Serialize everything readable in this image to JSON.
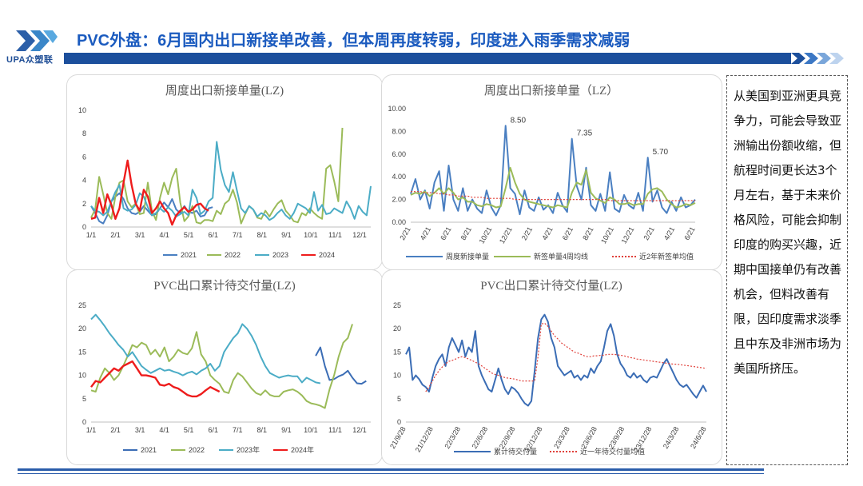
{
  "header": {
    "logo_text": "UPA众塑联",
    "title": "PVC外盘：6月国内出口新接单改善，但本周再度转弱，印度进入雨季需求减弱",
    "brand_color": "#1c4f9c"
  },
  "note": {
    "text": "从美国到亚洲更具竞争力，可能会导致亚洲输出份额收缩，但航程时间更长达3个月左右，基于未来价格风险，可能会抑制印度的购买兴趣，近期中国接单仍有改善机会，但料改善有限，因印度需求淡季且中东及非洲市场为美国所挤压。"
  },
  "chart_data": [
    {
      "id": "c1",
      "type": "line",
      "title": "周度出口新接单量(LZ)",
      "x_ticks": [
        "1/1",
        "2/1",
        "3/1",
        "4/1",
        "5/1",
        "6/1",
        "7/1",
        "8/1",
        "9/1",
        "10/1",
        "11/1",
        "12/1"
      ],
      "y_ticks": [
        "0",
        "2",
        "4",
        "6",
        "8",
        "10"
      ],
      "ylim": [
        0,
        10
      ],
      "legend_position": "bottom",
      "series": [
        {
          "name": "2021",
          "color": "#4a7fc1",
          "values": [
            1.8,
            1.2,
            0.5,
            0.3,
            1.0,
            2.2,
            2.6,
            2.9,
            2.4,
            1.6,
            1.2,
            1.1,
            1.3,
            1.8,
            1.4,
            1.0,
            1.1,
            1.6,
            2.1,
            1.7,
            2.4,
            1.5,
            1.2,
            1.8,
            1.3,
            1.2,
            1.4,
            0.9,
            1.0,
            1.6,
            1.7
          ]
        },
        {
          "name": "2022",
          "color": "#9bbb59",
          "values": [
            0.8,
            1.5,
            4.3,
            2.8,
            1.2,
            0.7,
            2.6,
            3.8,
            4.0,
            2.2,
            1.7,
            2.0,
            1.1,
            1.2,
            3.8,
            1.4,
            0.6,
            2.5,
            3.8,
            2.8,
            4.2,
            5.0,
            2.1,
            0.5,
            0.9,
            1.8,
            0.4,
            0.3,
            0.6,
            0.6,
            0.5,
            1.4,
            1.1,
            2.0,
            2.3,
            3.2,
            2.1,
            0.3,
            1.1,
            1.8,
            1.5,
            0.8,
            0.7,
            1.4,
            0.9,
            1.5,
            2.0,
            2.3,
            1.4,
            1.0,
            0.5,
            0.4,
            1.2,
            1.0,
            1.6,
            1.2,
            0.9,
            0.7,
            5.0,
            5.3,
            3.9,
            2.2,
            8.5
          ]
        },
        {
          "name": "2023",
          "color": "#4bacc6",
          "values": [
            1.8,
            1.4,
            1.3,
            1.0,
            1.3,
            2.2,
            3.0,
            3.6,
            1.6,
            1.4,
            1.5,
            1.9,
            2.9,
            2.6,
            1.7,
            1.0,
            1.2,
            1.6,
            1.3,
            1.7,
            1.4,
            0.9,
            1.1,
            1.3,
            1.0,
            3.2,
            2.5,
            1.1,
            1.4,
            2.2,
            2.5,
            7.3,
            4.9,
            3.6,
            3.0,
            4.7,
            3.1,
            1.6,
            1.2,
            1.8,
            1.5,
            0.9,
            1.2,
            1.0,
            0.6,
            0.8,
            1.2,
            1.5,
            1.0,
            0.7,
            1.2,
            2.0,
            1.8,
            1.6,
            1.2,
            3.0,
            1.4,
            1.9,
            1.1,
            1.2,
            1.6,
            1.4,
            1.2,
            2.2,
            1.6,
            0.7,
            1.8,
            1.3,
            1.0,
            3.5
          ]
        },
        {
          "name": "2024",
          "color": "#ee1c1c",
          "values": [
            0.7,
            0.8,
            2.5,
            1.2,
            2.8,
            1.9,
            0.7,
            1.6,
            3.8,
            5.7,
            3.6,
            2.0,
            1.4,
            3.2,
            2.6,
            1.2,
            1.6,
            2.2,
            1.6,
            1.2,
            0.2,
            1.0,
            1.4,
            1.7,
            1.3,
            1.5,
            1.9,
            2.0,
            1.6,
            1.4
          ]
        }
      ]
    },
    {
      "id": "c2",
      "type": "line",
      "title": "周度出口新接单量（LZ）",
      "x_ticks": [
        "2/21",
        "4/21",
        "6/21",
        "8/21",
        "10/21",
        "12/21",
        "2/21",
        "4/21",
        "6/21",
        "8/21",
        "10/21",
        "12/21",
        "2/21",
        "4/21",
        "6/21"
      ],
      "y_ticks": [
        "0.00",
        "2.00",
        "4.00",
        "6.00",
        "8.00",
        "10.00"
      ],
      "ylim": [
        0,
        10
      ],
      "legend_position": "bottom",
      "data_labels": [
        {
          "text": "8.50",
          "index": 20,
          "value": 8.5
        },
        {
          "text": "7.35",
          "index": 34,
          "value": 7.35
        },
        {
          "text": "5.70",
          "index": 50,
          "value": 5.7
        }
      ],
      "series": [
        {
          "name": "周度新接单量",
          "color": "#4a7fc1",
          "values": [
            2.5,
            3.8,
            2.0,
            2.8,
            1.2,
            3.5,
            4.5,
            1.0,
            5.0,
            2.0,
            1.0,
            3.0,
            1.0,
            2.0,
            1.2,
            0.8,
            2.8,
            1.3,
            0.6,
            1.5,
            8.5,
            3.0,
            2.5,
            0.7,
            2.8,
            1.3,
            1.0,
            2.2,
            1.1,
            1.5,
            0.8,
            2.6,
            1.5,
            0.9,
            7.35,
            3.2,
            2.0,
            4.8,
            1.5,
            1.0,
            2.5,
            1.0,
            4.4,
            1.2,
            0.9,
            2.4,
            1.5,
            1.2,
            2.6,
            1.0,
            5.7,
            1.8,
            2.8,
            1.3,
            0.8,
            1.8,
            1.0,
            2.2,
            1.3,
            1.5,
            2.0
          ]
        },
        {
          "name": "新签单量4周均线",
          "color": "#9bbb59",
          "values": [
            2.4,
            2.6,
            2.5,
            2.7,
            2.3,
            2.6,
            3.0,
            2.5,
            3.0,
            2.6,
            2.0,
            2.2,
            1.8,
            1.8,
            1.5,
            1.4,
            1.6,
            1.5,
            1.3,
            1.4,
            3.0,
            4.8,
            3.5,
            2.5,
            2.0,
            1.8,
            1.7,
            1.6,
            1.5,
            1.4,
            1.3,
            1.5,
            1.4,
            1.3,
            2.6,
            3.5,
            3.3,
            4.6,
            2.6,
            2.1,
            1.9,
            1.7,
            2.2,
            2.0,
            1.6,
            1.6,
            1.7,
            1.5,
            1.6,
            1.6,
            2.5,
            2.9,
            3.0,
            2.7,
            2.0,
            1.6,
            1.3,
            1.4,
            1.6,
            1.5,
            1.7
          ]
        },
        {
          "name": "近2年新签单均值",
          "color": "#e0403a",
          "dashed": true,
          "values": [
            2.7,
            2.7,
            2.7,
            2.6,
            2.6,
            2.6,
            2.5,
            2.5,
            2.4,
            2.4,
            2.3,
            2.3,
            2.3,
            2.2,
            2.2,
            2.2,
            2.1,
            2.1,
            2.1,
            2.1,
            2.1,
            2.1,
            2.0,
            2.0,
            2.0,
            2.0,
            2.0,
            2.0,
            2.0,
            2.0,
            2.0,
            2.0,
            2.0,
            2.0,
            2.0,
            2.0,
            2.0,
            2.0,
            2.0,
            2.0,
            2.0,
            2.0,
            1.9,
            1.9,
            1.9,
            1.9,
            1.9,
            1.9,
            1.9,
            1.9,
            1.9,
            1.9,
            1.9,
            1.9,
            1.9,
            1.9,
            1.9,
            1.9,
            1.9,
            1.9,
            1.9
          ]
        }
      ]
    },
    {
      "id": "c3",
      "type": "line",
      "title": "PVC出口累计待交付量(LZ)",
      "x_ticks": [
        "1/1",
        "2/1",
        "3/1",
        "4/1",
        "5/1",
        "6/1",
        "7/1",
        "8/1",
        "9/1",
        "10/1",
        "11/1",
        "12/1"
      ],
      "y_ticks": [
        "0",
        "5",
        "10",
        "15",
        "20",
        "25"
      ],
      "ylim": [
        0,
        25
      ],
      "legend_position": "bottom",
      "series": [
        {
          "name": "2021",
          "color": "#3b6db5",
          "offset": 49,
          "values": [
            14.2,
            16.0,
            12.0,
            9.0,
            9.2,
            9.8,
            10.2,
            11.0,
            9.5,
            8.3,
            8.2,
            8.8
          ]
        },
        {
          "name": "2022",
          "color": "#9bbb59",
          "values": [
            6.8,
            6.5,
            9.5,
            11.5,
            10.5,
            9.0,
            10.0,
            12.0,
            14.2,
            16.5,
            16.0,
            17.0,
            16.5,
            14.5,
            15.5,
            14.0,
            16.0,
            13.0,
            14.0,
            15.5,
            14.8,
            14.5,
            15.8,
            19.3,
            14.5,
            13.0,
            10.0,
            9.0,
            8.2,
            6.5,
            6.2,
            9.0,
            10.5,
            9.8,
            8.5,
            7.2,
            6.2,
            5.8,
            6.8,
            5.8,
            5.5,
            5.5,
            6.5,
            6.8,
            7.0,
            6.5,
            5.7,
            4.5,
            4.0,
            3.8,
            3.5,
            3.0,
            7.0,
            10.0,
            14.0,
            17.0,
            18.0,
            21.0
          ]
        },
        {
          "name": "2023年",
          "color": "#4bacc6",
          "values": [
            22.0,
            23.0,
            21.8,
            20.5,
            19.0,
            17.8,
            16.5,
            15.5,
            14.0,
            15.0,
            13.5,
            12.0,
            11.2,
            10.5,
            11.0,
            11.5,
            11.0,
            11.2,
            10.8,
            10.5,
            10.0,
            10.5,
            10.8,
            10.2,
            11.0,
            11.5,
            12.5,
            11.0,
            12.0,
            15.0,
            16.5,
            18.0,
            19.0,
            21.0,
            20.0,
            18.5,
            16.5,
            14.0,
            12.0,
            10.5,
            10.0,
            9.5,
            9.8,
            10.0,
            9.8,
            9.8,
            8.5,
            9.5,
            9.0,
            8.5,
            8.3
          ]
        },
        {
          "name": "2024年",
          "color": "#ee1c1c",
          "values": [
            7.5,
            8.8,
            8.5,
            9.5,
            10.5,
            11.5,
            11.0,
            12.0,
            12.5,
            13.0,
            11.5,
            10.0,
            10.0,
            9.8,
            9.5,
            8.0,
            7.8,
            8.2,
            7.5,
            7.2,
            6.5,
            5.8,
            5.5,
            5.5,
            6.0,
            6.8,
            7.5,
            7.0,
            6.5
          ]
        }
      ]
    },
    {
      "id": "c4",
      "type": "line",
      "title": "PVC出口累计待交付量(LZ)",
      "x_ticks": [
        "21/9/28",
        "21/12/28",
        "22/3/28",
        "22/6/28",
        "22/9/28",
        "22/12/28",
        "23/3/28",
        "23/6/28",
        "23/9/28",
        "23/12/28",
        "24/3/28",
        "24/6/28"
      ],
      "y_ticks": [
        "0",
        "5",
        "10",
        "15",
        "20",
        "25"
      ],
      "ylim": [
        0,
        25
      ],
      "legend_position": "bottom",
      "series": [
        {
          "name": "累计待交付量",
          "color": "#3b6db5",
          "values": [
            14.5,
            16.0,
            9.0,
            10.0,
            9.2,
            8.0,
            7.5,
            6.5,
            9.5,
            12.0,
            13.5,
            14.5,
            12.0,
            16.0,
            18.0,
            16.5,
            15.0,
            17.5,
            14.0,
            16.0,
            15.0,
            19.5,
            12.0,
            10.0,
            8.5,
            7.0,
            6.5,
            9.0,
            11.5,
            9.0,
            7.0,
            6.0,
            7.5,
            7.0,
            6.2,
            5.0,
            4.0,
            3.5,
            4.5,
            11.0,
            18.0,
            22.0,
            23.0,
            21.5,
            18.0,
            16.0,
            12.0,
            11.0,
            10.0,
            10.5,
            11.0,
            9.5,
            10.0,
            9.0,
            10.0,
            9.5,
            11.5,
            10.5,
            12.0,
            13.0,
            16.0,
            19.5,
            21.0,
            18.5,
            14.5,
            12.5,
            11.5,
            10.0,
            9.5,
            10.5,
            9.5,
            10.0,
            9.0,
            8.5,
            9.5,
            9.8,
            9.5,
            11.0,
            12.5,
            13.5,
            12.0,
            10.5,
            9.0,
            8.0,
            7.5,
            8.0,
            7.0,
            6.0,
            5.2,
            6.5,
            7.8,
            6.5
          ]
        },
        {
          "name": "近一年待交付量均值",
          "color": "#e0403a",
          "dashed": true,
          "values": [
            null,
            null,
            null,
            null,
            null,
            null,
            6.5,
            7.5,
            8.8,
            10.0,
            11.0,
            11.8,
            12.5,
            13.0,
            13.2,
            13.5,
            13.8,
            14.0,
            13.8,
            13.5,
            13.2,
            12.8,
            12.5,
            12.0,
            11.5,
            11.0,
            10.5,
            10.2,
            10.0,
            9.8,
            9.5,
            9.4,
            9.3,
            9.2,
            9.0,
            8.8,
            8.8,
            8.8,
            8.8,
            8.8,
            14.0,
            21.0,
            21.2,
            20.5,
            19.5,
            18.5,
            17.8,
            17.0,
            16.5,
            16.0,
            15.5,
            15.0,
            14.8,
            14.5,
            14.2,
            14.0,
            14.0,
            14.2,
            14.2,
            14.3,
            14.3,
            14.5,
            14.5,
            14.5,
            14.4,
            14.3,
            14.2,
            14.0,
            13.8,
            13.7,
            13.5,
            13.4,
            13.3,
            13.2,
            13.1,
            13.0,
            12.9,
            12.8,
            12.7,
            12.6,
            12.5,
            12.4,
            12.4,
            12.3,
            12.2,
            12.1,
            12.0,
            11.9,
            11.8,
            11.7,
            11.6,
            11.5
          ]
        }
      ]
    }
  ]
}
